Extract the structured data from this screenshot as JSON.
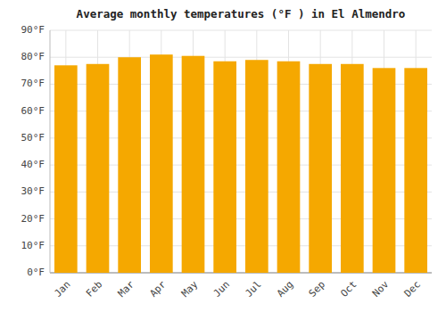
{
  "chart_data": {
    "type": "bar",
    "title": "Average monthly temperatures (°F ) in El Almendro",
    "categories": [
      "Jan",
      "Feb",
      "Mar",
      "Apr",
      "May",
      "Jun",
      "Jul",
      "Aug",
      "Sep",
      "Oct",
      "Nov",
      "Dec"
    ],
    "values": [
      77,
      77.5,
      80,
      81,
      80.5,
      78.5,
      79,
      78.5,
      77.5,
      77.5,
      76,
      76
    ],
    "color": "#F5A800",
    "ylim": [
      0,
      90
    ],
    "yticks": [
      {
        "value": 0,
        "label": "0°F"
      },
      {
        "value": 10,
        "label": "10°F"
      },
      {
        "value": 20,
        "label": "20°F"
      },
      {
        "value": 30,
        "label": "30°F"
      },
      {
        "value": 40,
        "label": "40°F"
      },
      {
        "value": 50,
        "label": "50°F"
      },
      {
        "value": 60,
        "label": "60°F"
      },
      {
        "value": 70,
        "label": "70°F"
      },
      {
        "value": 80,
        "label": "80°F"
      },
      {
        "value": 90,
        "label": "90°F"
      }
    ],
    "grid": true
  }
}
